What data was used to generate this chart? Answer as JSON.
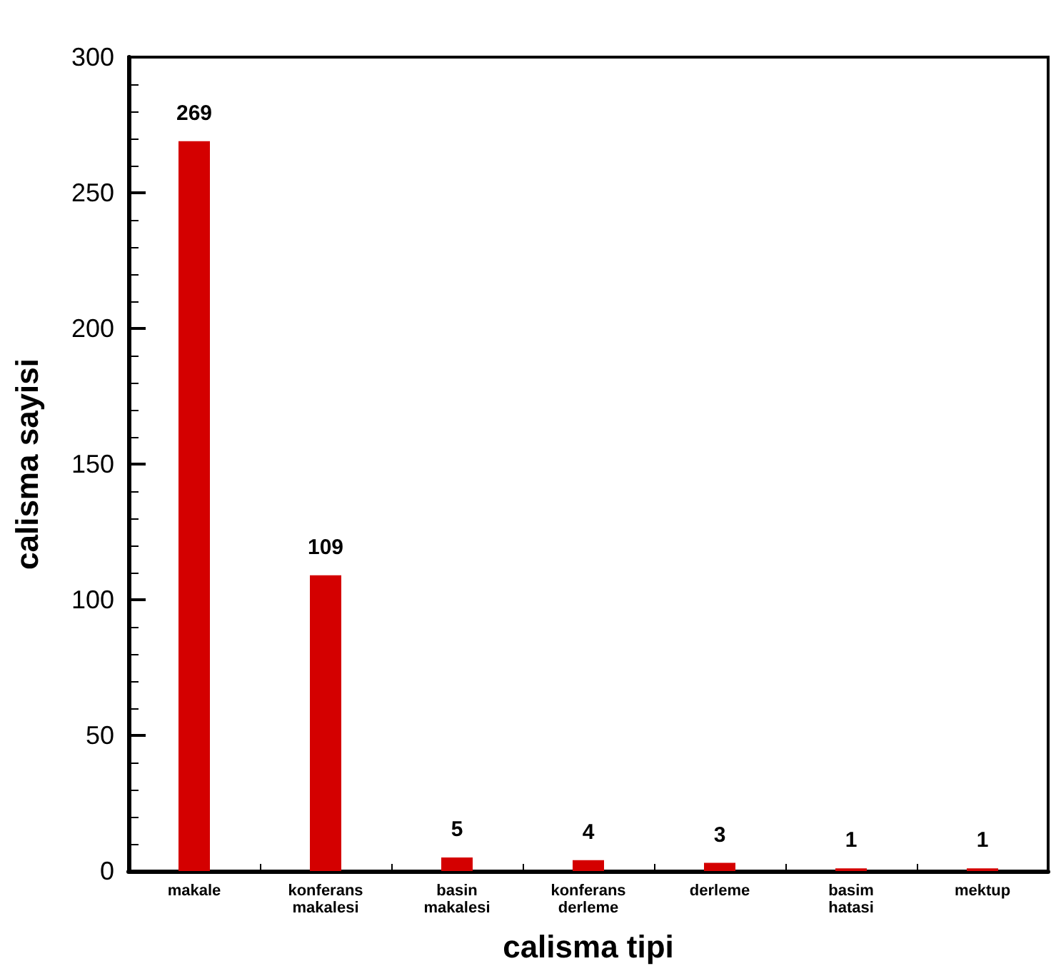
{
  "chart_data": {
    "type": "bar",
    "xlabel": "calisma tipi",
    "ylabel": "calisma sayisi",
    "categories": [
      "makale",
      "konferans makalesi",
      "basin makalesi",
      "konferans derleme",
      "derleme",
      "basim hatasi",
      "mektup"
    ],
    "values": [
      269,
      109,
      5,
      4,
      3,
      1,
      1
    ],
    "color": "#d40000",
    "ylim": [
      0,
      300
    ],
    "yticks": [
      0,
      50,
      100,
      150,
      200,
      250,
      300
    ],
    "grid": false,
    "data_labels": true
  }
}
